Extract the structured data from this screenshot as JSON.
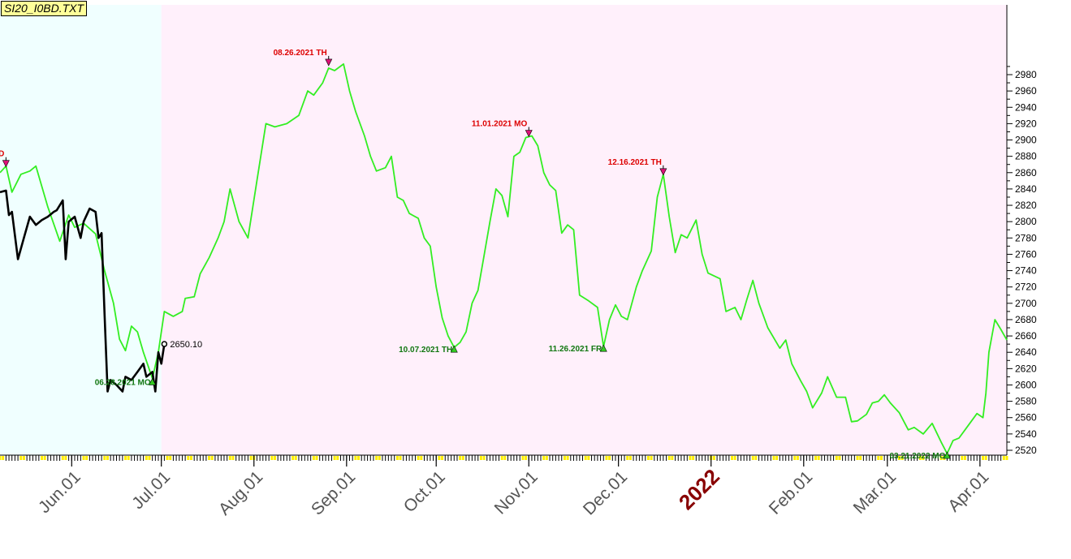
{
  "file_label": "SI20_I0BD.TXT",
  "colors": {
    "history_bg": "#f0ffff",
    "forecast_bg": "#fff0fb",
    "forecast_line": "#33ee22",
    "actual_line": "#000000",
    "peak_label": "#dd0000",
    "trough_label": "#117711",
    "peak_marker": "#dd1177",
    "trough_marker": "#33cc22",
    "year_label": "#880000",
    "axis_text": "#555555"
  },
  "chart_data": {
    "type": "line",
    "title": "",
    "xlabel": "",
    "ylabel": "",
    "x_start": "2021-05-08",
    "x_end": "2022-04-10",
    "forecast_start": "2021-07-01",
    "ylim": [
      2515,
      2995
    ],
    "y_ticks": [
      2520,
      2540,
      2560,
      2580,
      2600,
      2620,
      2640,
      2660,
      2680,
      2700,
      2720,
      2740,
      2760,
      2780,
      2800,
      2820,
      2840,
      2860,
      2880,
      2900,
      2920,
      2940,
      2960,
      2980
    ],
    "x_ticks": [
      {
        "date": "2021-06-01",
        "label": "Jun.01"
      },
      {
        "date": "2021-07-01",
        "label": "Jul.01"
      },
      {
        "date": "2021-08-01",
        "label": "Aug.01"
      },
      {
        "date": "2021-09-01",
        "label": "Sep.01"
      },
      {
        "date": "2021-10-01",
        "label": "Oct.01"
      },
      {
        "date": "2021-11-01",
        "label": "Nov.01"
      },
      {
        "date": "2021-12-01",
        "label": "Dec.01"
      },
      {
        "date": "2022-01-01",
        "label": "2022",
        "year": true
      },
      {
        "date": "2022-02-01",
        "label": "Feb.01"
      },
      {
        "date": "2022-03-01",
        "label": "Mar.01"
      },
      {
        "date": "2022-04-01",
        "label": "Apr.01"
      }
    ],
    "grid": false,
    "series": [
      {
        "role": "forecast",
        "points": [
          [
            "2021-05-08",
            2860
          ],
          [
            "2021-05-10",
            2868
          ],
          [
            "2021-05-12",
            2836
          ],
          [
            "2021-05-15",
            2858
          ],
          [
            "2021-05-18",
            2862
          ],
          [
            "2021-05-20",
            2868
          ],
          [
            "2021-05-24",
            2818
          ],
          [
            "2021-05-28",
            2776
          ],
          [
            "2021-05-31",
            2808
          ],
          [
            "2021-06-02",
            2793
          ],
          [
            "2021-06-05",
            2798
          ],
          [
            "2021-06-09",
            2785
          ],
          [
            "2021-06-12",
            2740
          ],
          [
            "2021-06-15",
            2700
          ],
          [
            "2021-06-17",
            2656
          ],
          [
            "2021-06-19",
            2642
          ],
          [
            "2021-06-21",
            2672
          ],
          [
            "2021-06-23",
            2665
          ],
          [
            "2021-06-25",
            2640
          ],
          [
            "2021-06-28",
            2608
          ],
          [
            "2021-06-30",
            2640
          ],
          [
            "2021-07-02",
            2690
          ],
          [
            "2021-07-05",
            2684
          ],
          [
            "2021-07-08",
            2690
          ],
          [
            "2021-07-09",
            2706
          ],
          [
            "2021-07-12",
            2708
          ],
          [
            "2021-07-14",
            2736
          ],
          [
            "2021-07-17",
            2756
          ],
          [
            "2021-07-20",
            2780
          ],
          [
            "2021-07-22",
            2800
          ],
          [
            "2021-07-24",
            2840
          ],
          [
            "2021-07-27",
            2800
          ],
          [
            "2021-07-30",
            2780
          ],
          [
            "2021-08-02",
            2850
          ],
          [
            "2021-08-05",
            2920
          ],
          [
            "2021-08-08",
            2916
          ],
          [
            "2021-08-12",
            2920
          ],
          [
            "2021-08-16",
            2930
          ],
          [
            "2021-08-19",
            2960
          ],
          [
            "2021-08-21",
            2955
          ],
          [
            "2021-08-24",
            2970
          ],
          [
            "2021-08-26",
            2988
          ],
          [
            "2021-08-28",
            2985
          ],
          [
            "2021-08-31",
            2993
          ],
          [
            "2021-09-02",
            2960
          ],
          [
            "2021-09-04",
            2935
          ],
          [
            "2021-09-07",
            2905
          ],
          [
            "2021-09-09",
            2880
          ],
          [
            "2021-09-11",
            2862
          ],
          [
            "2021-09-14",
            2866
          ],
          [
            "2021-09-16",
            2880
          ],
          [
            "2021-09-18",
            2830
          ],
          [
            "2021-09-20",
            2826
          ],
          [
            "2021-09-22",
            2810
          ],
          [
            "2021-09-25",
            2804
          ],
          [
            "2021-09-27",
            2780
          ],
          [
            "2021-09-29",
            2770
          ],
          [
            "2021-10-01",
            2720
          ],
          [
            "2021-10-03",
            2682
          ],
          [
            "2021-10-05",
            2660
          ],
          [
            "2021-10-07",
            2646
          ],
          [
            "2021-10-09",
            2652
          ],
          [
            "2021-10-11",
            2665
          ],
          [
            "2021-10-13",
            2700
          ],
          [
            "2021-10-15",
            2716
          ],
          [
            "2021-10-17",
            2758
          ],
          [
            "2021-10-19",
            2800
          ],
          [
            "2021-10-21",
            2840
          ],
          [
            "2021-10-23",
            2832
          ],
          [
            "2021-10-25",
            2806
          ],
          [
            "2021-10-27",
            2880
          ],
          [
            "2021-10-29",
            2885
          ],
          [
            "2021-10-31",
            2903
          ],
          [
            "2021-11-02",
            2905
          ],
          [
            "2021-11-04",
            2893
          ],
          [
            "2021-11-06",
            2860
          ],
          [
            "2021-11-08",
            2845
          ],
          [
            "2021-11-10",
            2838
          ],
          [
            "2021-11-12",
            2786
          ],
          [
            "2021-11-14",
            2796
          ],
          [
            "2021-11-16",
            2790
          ],
          [
            "2021-11-18",
            2710
          ],
          [
            "2021-11-21",
            2703
          ],
          [
            "2021-11-24",
            2695
          ],
          [
            "2021-11-26",
            2647
          ],
          [
            "2021-11-28",
            2680
          ],
          [
            "2021-11-30",
            2698
          ],
          [
            "2021-12-02",
            2684
          ],
          [
            "2021-12-04",
            2680
          ],
          [
            "2021-12-07",
            2720
          ],
          [
            "2021-12-09",
            2740
          ],
          [
            "2021-12-12",
            2764
          ],
          [
            "2021-12-14",
            2830
          ],
          [
            "2021-12-16",
            2858
          ],
          [
            "2021-12-18",
            2806
          ],
          [
            "2021-12-20",
            2762
          ],
          [
            "2021-12-22",
            2784
          ],
          [
            "2021-12-24",
            2780
          ],
          [
            "2021-12-27",
            2802
          ],
          [
            "2021-12-29",
            2760
          ],
          [
            "2021-12-31",
            2737
          ],
          [
            "2022-01-04",
            2730
          ],
          [
            "2022-01-06",
            2690
          ],
          [
            "2022-01-09",
            2695
          ],
          [
            "2022-01-11",
            2680
          ],
          [
            "2022-01-13",
            2705
          ],
          [
            "2022-01-15",
            2728
          ],
          [
            "2022-01-17",
            2700
          ],
          [
            "2022-01-20",
            2670
          ],
          [
            "2022-01-24",
            2645
          ],
          [
            "2022-01-26",
            2655
          ],
          [
            "2022-01-28",
            2626
          ],
          [
            "2022-01-31",
            2605
          ],
          [
            "2022-02-02",
            2592
          ],
          [
            "2022-02-04",
            2572
          ],
          [
            "2022-02-07",
            2590
          ],
          [
            "2022-02-09",
            2610
          ],
          [
            "2022-02-12",
            2585
          ],
          [
            "2022-02-15",
            2585
          ],
          [
            "2022-02-17",
            2555
          ],
          [
            "2022-02-19",
            2556
          ],
          [
            "2022-02-22",
            2564
          ],
          [
            "2022-02-24",
            2578
          ],
          [
            "2022-02-26",
            2580
          ],
          [
            "2022-02-28",
            2588
          ],
          [
            "2022-03-02",
            2578
          ],
          [
            "2022-03-05",
            2566
          ],
          [
            "2022-03-08",
            2545
          ],
          [
            "2022-03-10",
            2548
          ],
          [
            "2022-03-13",
            2540
          ],
          [
            "2022-03-16",
            2553
          ],
          [
            "2022-03-19",
            2530
          ],
          [
            "2022-03-21",
            2516
          ],
          [
            "2022-03-23",
            2532
          ],
          [
            "2022-03-25",
            2535
          ],
          [
            "2022-03-27",
            2545
          ],
          [
            "2022-03-29",
            2555
          ],
          [
            "2022-03-31",
            2565
          ],
          [
            "2022-04-02",
            2560
          ],
          [
            "2022-04-03",
            2590
          ],
          [
            "2022-04-04",
            2640
          ],
          [
            "2022-04-06",
            2680
          ],
          [
            "2022-04-08",
            2668
          ],
          [
            "2022-04-10",
            2655
          ]
        ]
      },
      {
        "role": "actual",
        "points": [
          [
            "2021-05-08",
            2836
          ],
          [
            "2021-05-10",
            2838
          ],
          [
            "2021-05-11",
            2808
          ],
          [
            "2021-05-12",
            2812
          ],
          [
            "2021-05-14",
            2754
          ],
          [
            "2021-05-16",
            2780
          ],
          [
            "2021-05-18",
            2806
          ],
          [
            "2021-05-20",
            2796
          ],
          [
            "2021-05-22",
            2802
          ],
          [
            "2021-05-24",
            2806
          ],
          [
            "2021-05-26",
            2812
          ],
          [
            "2021-05-27",
            2814
          ],
          [
            "2021-05-29",
            2826
          ],
          [
            "2021-05-30",
            2754
          ],
          [
            "2021-05-31",
            2800
          ],
          [
            "2021-06-02",
            2806
          ],
          [
            "2021-06-04",
            2780
          ],
          [
            "2021-06-05",
            2800
          ],
          [
            "2021-06-07",
            2816
          ],
          [
            "2021-06-09",
            2812
          ],
          [
            "2021-06-10",
            2780
          ],
          [
            "2021-06-11",
            2786
          ],
          [
            "2021-06-12",
            2686
          ],
          [
            "2021-06-13",
            2592
          ],
          [
            "2021-06-14",
            2606
          ],
          [
            "2021-06-16",
            2600
          ],
          [
            "2021-06-18",
            2592
          ],
          [
            "2021-06-19",
            2610
          ],
          [
            "2021-06-21",
            2606
          ],
          [
            "2021-06-23",
            2616
          ],
          [
            "2021-06-25",
            2626
          ],
          [
            "2021-06-26",
            2610
          ],
          [
            "2021-06-28",
            2616
          ],
          [
            "2021-06-29",
            2592
          ],
          [
            "2021-06-30",
            2640
          ],
          [
            "2021-07-01",
            2626
          ],
          [
            "2021-07-02",
            2650.1
          ]
        ]
      }
    ],
    "last_value": {
      "date": "2021-07-02",
      "value": 2650.1,
      "label": "2650.10"
    },
    "annotations": [
      {
        "kind": "peak",
        "date": "2021-05-10",
        "value": 2868,
        "text": "D",
        "align": "end"
      },
      {
        "kind": "peak",
        "date": "2021-08-26",
        "value": 2992,
        "text": "08.26.2021 TH",
        "align": "end"
      },
      {
        "kind": "peak",
        "date": "2021-11-01",
        "value": 2905,
        "text": "11.01.2021 MO",
        "align": "end"
      },
      {
        "kind": "peak",
        "date": "2021-12-16",
        "value": 2858,
        "text": "12.16.2021 TH",
        "align": "end"
      },
      {
        "kind": "trough",
        "date": "2021-06-28",
        "value": 2606,
        "text": "06.28.2021 MO",
        "align": "end"
      },
      {
        "kind": "trough",
        "date": "2021-10-07",
        "value": 2646,
        "text": "10.07.2021 TH",
        "align": "end"
      },
      {
        "kind": "trough",
        "date": "2021-11-26",
        "value": 2647,
        "text": "11.26.2021 FR",
        "align": "end"
      },
      {
        "kind": "trough",
        "date": "2022-03-21",
        "value": 2516,
        "text": "03.21.2022 MO",
        "align": "end"
      }
    ]
  }
}
